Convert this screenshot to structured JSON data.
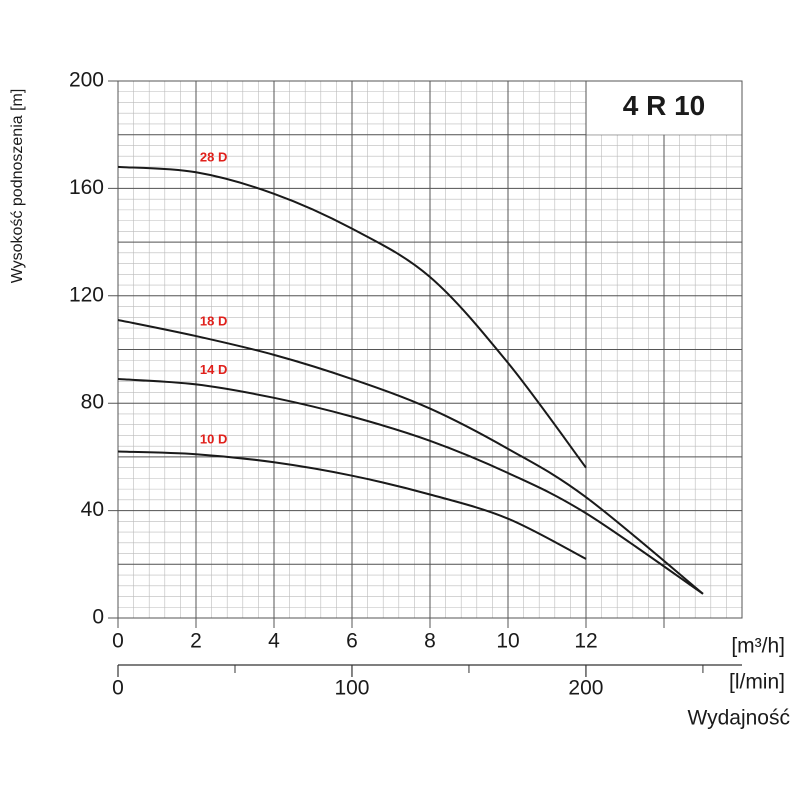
{
  "chart_data": {
    "type": "line",
    "title": "4 R 10",
    "y_label": "Wysokość podnoszenia [m]",
    "x_label": "[m³/h]",
    "x2_label": "[l/min]",
    "x_title": "Wydajność",
    "x": [
      0,
      2,
      4,
      6,
      8,
      10,
      12,
      15
    ],
    "series": [
      {
        "name": "28 D",
        "color": "#1a1a1a",
        "values": [
          168,
          166,
          158,
          145,
          127,
          95,
          56,
          null
        ]
      },
      {
        "name": "18 D",
        "color": "#1a1a1a",
        "values": [
          111,
          105,
          98,
          89,
          78,
          63,
          45,
          9
        ]
      },
      {
        "name": "14 D",
        "color": "#1a1a1a",
        "values": [
          89,
          87,
          82,
          75,
          66,
          54,
          39,
          9
        ]
      },
      {
        "name": "10 D",
        "color": "#1a1a1a",
        "values": [
          62,
          61,
          58,
          53,
          46,
          37,
          22,
          null
        ]
      }
    ],
    "label_color": "#e0201b",
    "xlim": [
      0,
      16
    ],
    "xticks": [
      0,
      2,
      4,
      6,
      8,
      10,
      12
    ],
    "ylim": [
      0,
      200
    ],
    "yticks": [
      0,
      40,
      80,
      120,
      160,
      200
    ],
    "x2lim": [
      0,
      266.7
    ],
    "x2ticks": [
      0,
      100,
      200
    ],
    "x2ticks_minor": [
      50,
      150,
      250
    ],
    "grid": true
  }
}
